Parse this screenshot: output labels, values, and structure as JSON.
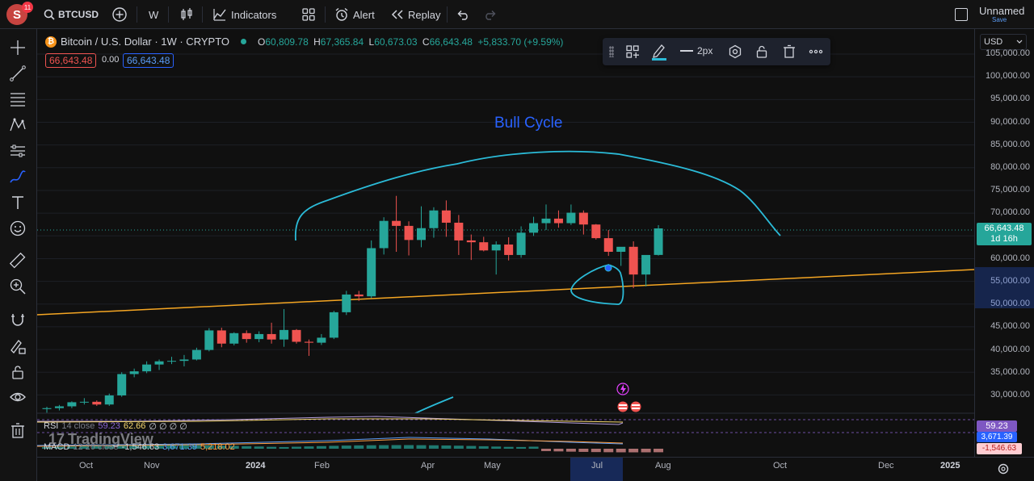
{
  "topbar": {
    "avatar_letter": "S",
    "notif_count": "11",
    "symbol": "BTCUSD",
    "interval": "W",
    "indicators_label": "Indicators",
    "alert_label": "Alert",
    "replay_label": "Replay",
    "layout_name": "Unnamed",
    "layout_status": "Save"
  },
  "legend": {
    "title": "Bitcoin / U.S. Dollar · 1W · CRYPTO",
    "o_label": "O",
    "o_val": "60,809.78",
    "h_label": "H",
    "h_val": "67,365.84",
    "l_label": "L",
    "l_val": "60,673.03",
    "c_label": "C",
    "c_val": "66,643.48",
    "change": "+5,833.70 (+9.59%)",
    "sell_price": "66,643.48",
    "spread": "0.00",
    "buy_price": "66,643.48"
  },
  "toolbar_float": {
    "width_label": "2px"
  },
  "annotation": {
    "bull_text": "Bull Cycle"
  },
  "price_axis": {
    "currency": "USD",
    "ticks": [
      "105,000.00",
      "100,000.00",
      "95,000.00",
      "90,000.00",
      "85,000.00",
      "80,000.00",
      "75,000.00",
      "70,000.00",
      "65,000.00",
      "60,000.00",
      "55,000.00",
      "50,000.00",
      "45,000.00",
      "40,000.00",
      "35,000.00",
      "30,000.00"
    ],
    "last_price": "66,643.48",
    "countdown": "1d 16h",
    "rsi_tag": "59.23",
    "macd_tag1": "3,671.39",
    "macd_tag2": "-1,546.63"
  },
  "time_axis": {
    "labels": [
      "Oct",
      "Nov",
      "2024",
      "Feb",
      "Apr",
      "May",
      "Jul",
      "Aug",
      "Oct",
      "Dec",
      "2025"
    ]
  },
  "indicators": {
    "rsi_name": "RSI",
    "rsi_params": "14 close",
    "rsi_v1": "59.23",
    "rsi_v2": "62.66",
    "rsi_rest": "∅ ∅ ∅ ∅",
    "macd_name": "MACD",
    "macd_params": "12 26 close",
    "macd_v1": "-1,546.63",
    "macd_v2": "3,671.39",
    "macd_v3": "5,218.02"
  },
  "watermark": "TradingView",
  "colors": {
    "up": "#26a69a",
    "down": "#ef5350",
    "trendline": "#f5a623",
    "drawing": "#2bbbd8",
    "bull_text": "#2962ff"
  },
  "chart_data": {
    "type": "candlestick",
    "symbol": "BTCUSD",
    "timeframe": "1W",
    "ylim": [
      26000,
      106000
    ],
    "candles": [
      {
        "o": 26900,
        "h": 27400,
        "l": 26100,
        "c": 27100
      },
      {
        "o": 27100,
        "h": 27800,
        "l": 26600,
        "c": 27500
      },
      {
        "o": 27500,
        "h": 28600,
        "l": 27100,
        "c": 28400
      },
      {
        "o": 28400,
        "h": 29300,
        "l": 27900,
        "c": 28500
      },
      {
        "o": 28500,
        "h": 28800,
        "l": 27600,
        "c": 27900
      },
      {
        "o": 27900,
        "h": 30300,
        "l": 27600,
        "c": 29900
      },
      {
        "o": 29900,
        "h": 35000,
        "l": 29600,
        "c": 34600
      },
      {
        "o": 34600,
        "h": 35800,
        "l": 33900,
        "c": 35200
      },
      {
        "o": 35200,
        "h": 37400,
        "l": 34800,
        "c": 36700
      },
      {
        "o": 36700,
        "h": 37800,
        "l": 35500,
        "c": 37400
      },
      {
        "o": 37400,
        "h": 38400,
        "l": 36800,
        "c": 37500
      },
      {
        "o": 37500,
        "h": 38800,
        "l": 36300,
        "c": 37800
      },
      {
        "o": 37800,
        "h": 40400,
        "l": 37600,
        "c": 39900
      },
      {
        "o": 39900,
        "h": 44700,
        "l": 39600,
        "c": 44200
      },
      {
        "o": 44200,
        "h": 44800,
        "l": 40500,
        "c": 41300
      },
      {
        "o": 41300,
        "h": 43800,
        "l": 40900,
        "c": 43600
      },
      {
        "o": 43600,
        "h": 44200,
        "l": 41500,
        "c": 42300
      },
      {
        "o": 42300,
        "h": 44000,
        "l": 41600,
        "c": 43400
      },
      {
        "o": 43400,
        "h": 45900,
        "l": 41300,
        "c": 42200
      },
      {
        "o": 42200,
        "h": 48900,
        "l": 40600,
        "c": 44300
      },
      {
        "o": 44300,
        "h": 44500,
        "l": 41300,
        "c": 41700
      },
      {
        "o": 41700,
        "h": 42200,
        "l": 38600,
        "c": 41500
      },
      {
        "o": 41500,
        "h": 43400,
        "l": 41000,
        "c": 42600
      },
      {
        "o": 42600,
        "h": 48500,
        "l": 42300,
        "c": 48200
      },
      {
        "o": 48200,
        "h": 52900,
        "l": 47600,
        "c": 52100
      },
      {
        "o": 52100,
        "h": 52900,
        "l": 50700,
        "c": 51700
      },
      {
        "o": 51700,
        "h": 64000,
        "l": 51300,
        "c": 62300
      },
      {
        "o": 62300,
        "h": 69100,
        "l": 60900,
        "c": 68300
      },
      {
        "o": 68300,
        "h": 73800,
        "l": 61500,
        "c": 67200
      },
      {
        "o": 67200,
        "h": 68200,
        "l": 60700,
        "c": 64100
      },
      {
        "o": 64100,
        "h": 71500,
        "l": 62500,
        "c": 66700
      },
      {
        "o": 66700,
        "h": 71300,
        "l": 64600,
        "c": 70600
      },
      {
        "o": 70600,
        "h": 72800,
        "l": 64800,
        "c": 67900
      },
      {
        "o": 67900,
        "h": 69600,
        "l": 60800,
        "c": 64000
      },
      {
        "o": 64000,
        "h": 65300,
        "l": 59700,
        "c": 63600
      },
      {
        "o": 63600,
        "h": 64800,
        "l": 61600,
        "c": 61800
      },
      {
        "o": 61800,
        "h": 63800,
        "l": 56500,
        "c": 63100
      },
      {
        "o": 63100,
        "h": 64700,
        "l": 59600,
        "c": 60800
      },
      {
        "o": 60800,
        "h": 67100,
        "l": 60200,
        "c": 65700
      },
      {
        "o": 65700,
        "h": 69200,
        "l": 65000,
        "c": 67800
      },
      {
        "o": 67800,
        "h": 71900,
        "l": 66300,
        "c": 68800
      },
      {
        "o": 68800,
        "h": 70600,
        "l": 66800,
        "c": 67800
      },
      {
        "o": 67800,
        "h": 71900,
        "l": 67400,
        "c": 70100
      },
      {
        "o": 70100,
        "h": 70600,
        "l": 65300,
        "c": 67500
      },
      {
        "o": 67500,
        "h": 67600,
        "l": 64200,
        "c": 64500
      },
      {
        "o": 64500,
        "h": 66300,
        "l": 60600,
        "c": 61500
      },
      {
        "o": 61500,
        "h": 62500,
        "l": 58400,
        "c": 62600
      },
      {
        "o": 62600,
        "h": 63800,
        "l": 53500,
        "c": 56500
      },
      {
        "o": 56500,
        "h": 60500,
        "l": 53900,
        "c": 60800
      },
      {
        "o": 60809.78,
        "h": 67365.84,
        "l": 60673.03,
        "c": 66643.48
      }
    ]
  }
}
